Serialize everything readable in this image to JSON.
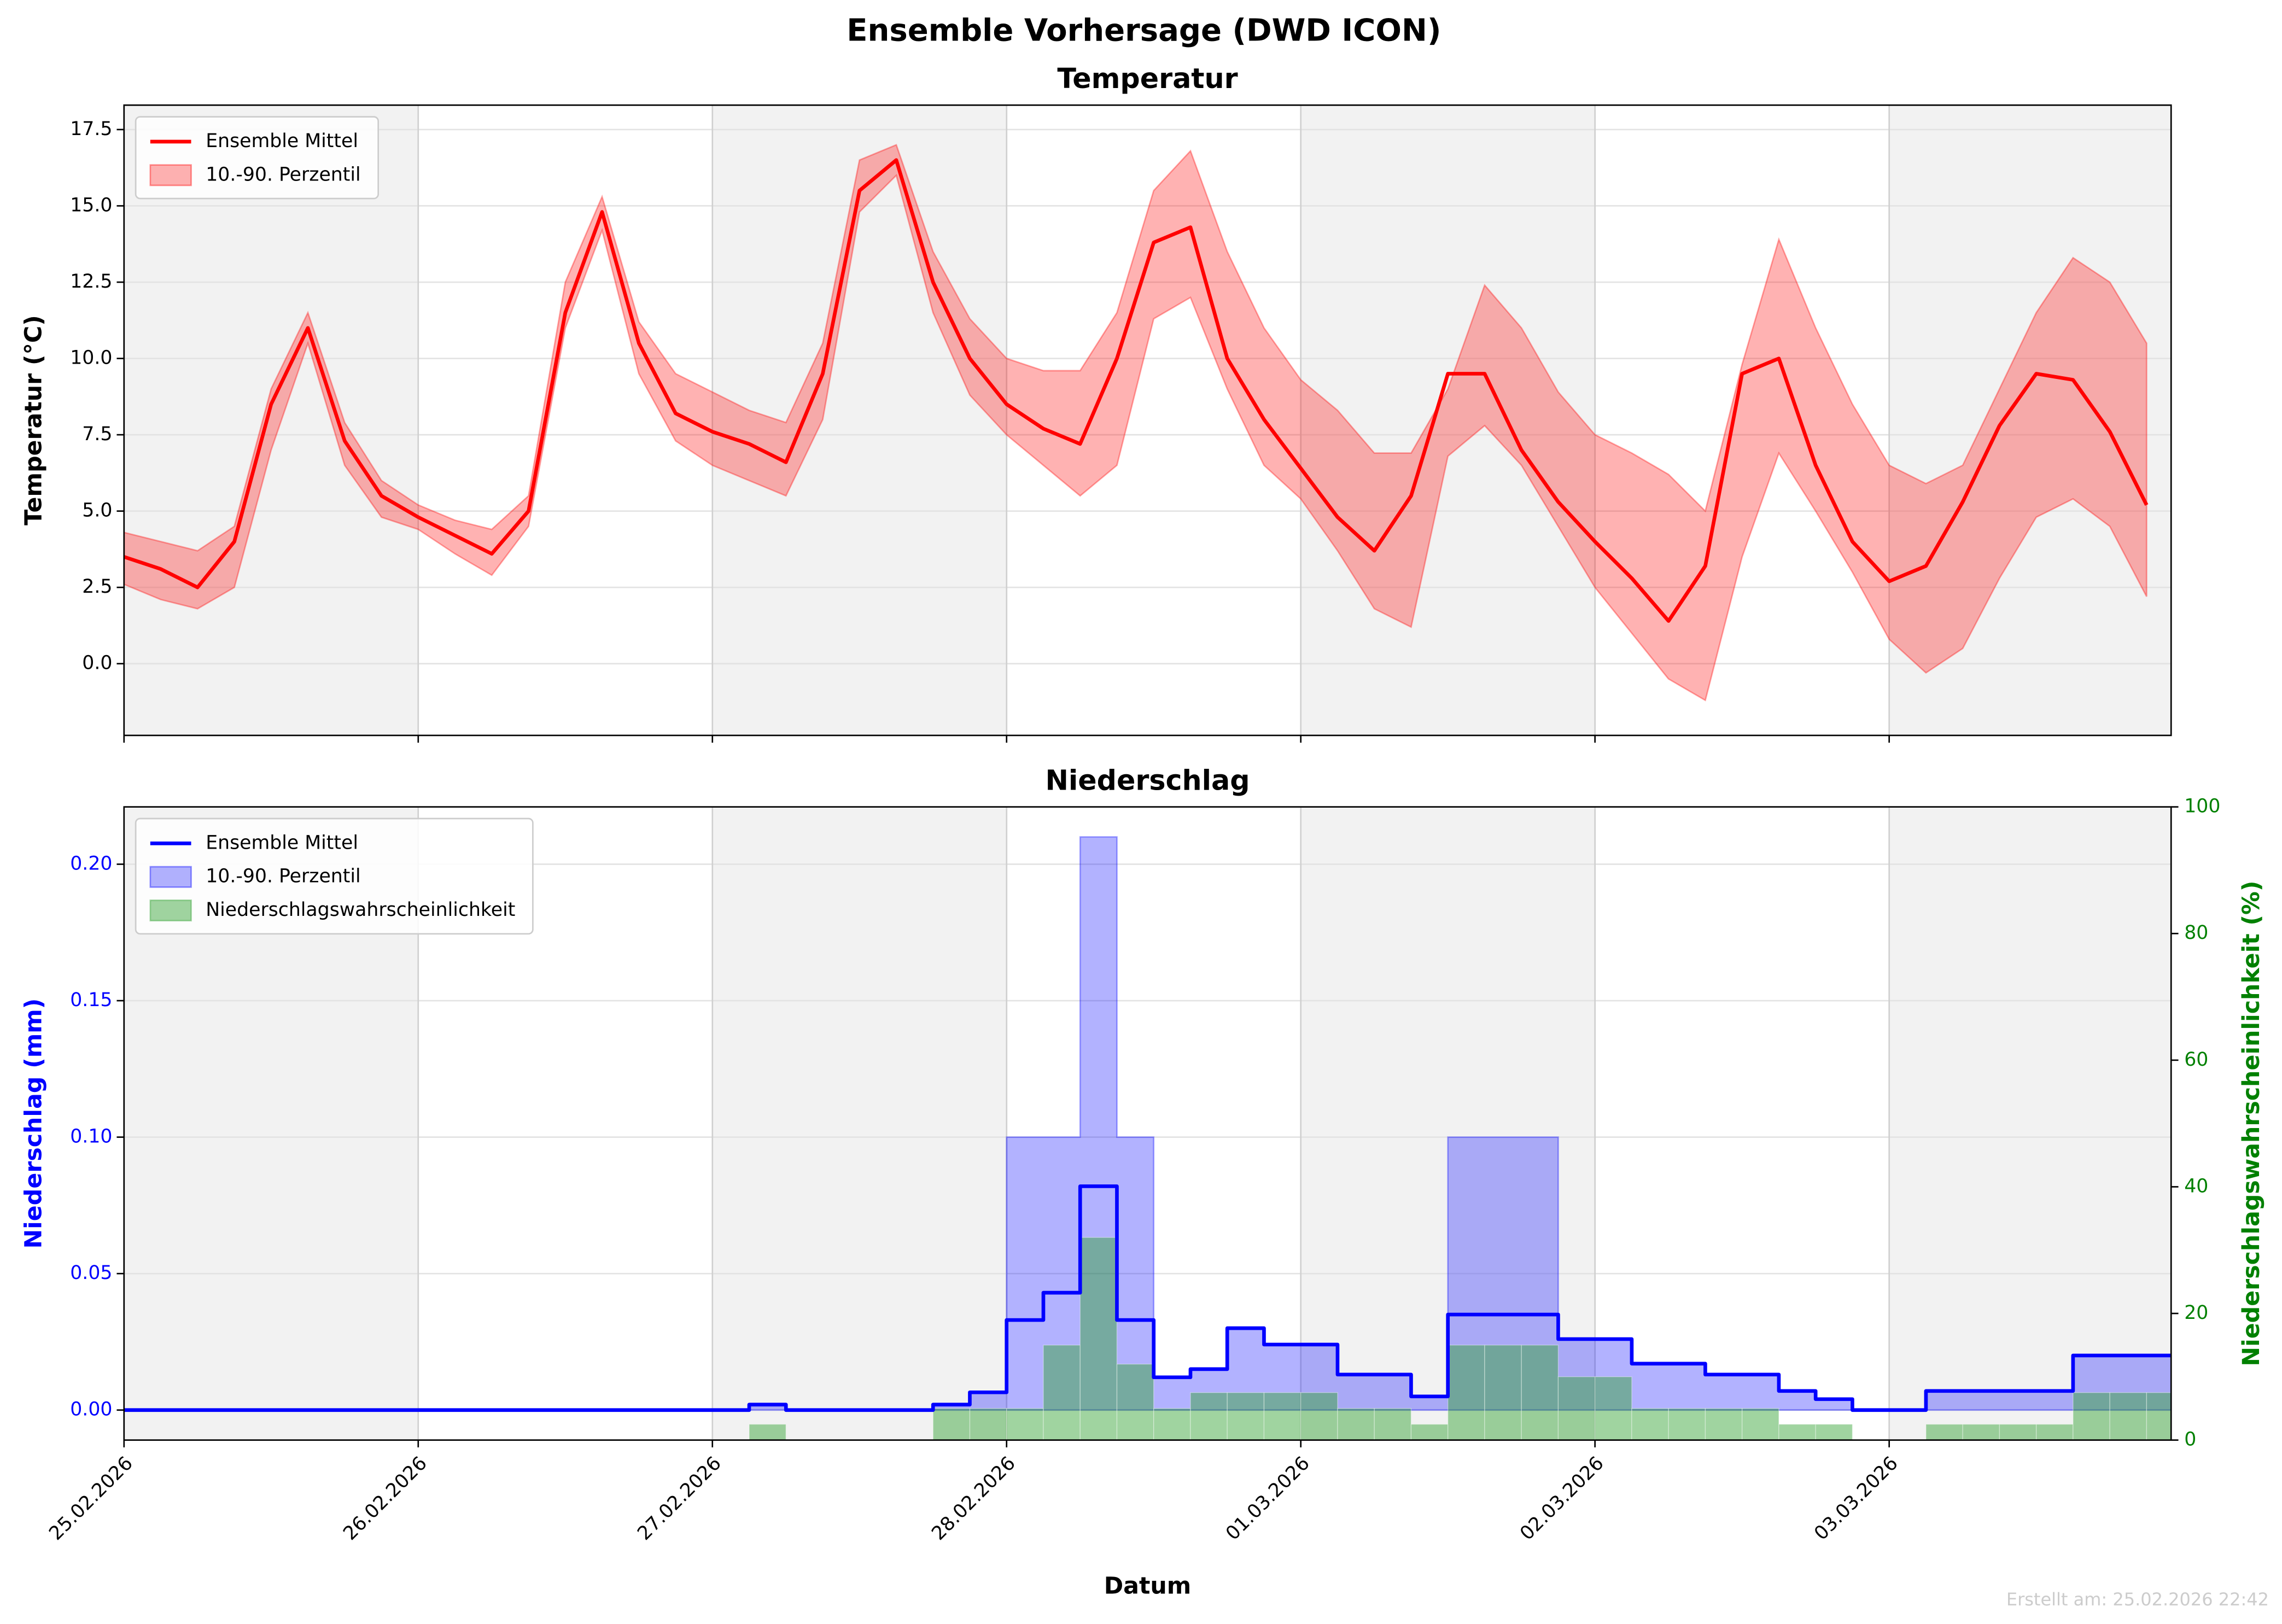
{
  "title": "Ensemble Vorhersage (DWD ICON)",
  "footer": "Erstellt am: 25.02.2026 22:42",
  "chart_data": [
    {
      "type": "line",
      "title": "Temperatur",
      "ylabel": "Temperatur (°C)",
      "x": [
        0,
        3,
        6,
        9,
        12,
        15,
        18,
        21,
        24,
        27,
        30,
        33,
        36,
        39,
        42,
        45,
        48,
        51,
        54,
        57,
        60,
        63,
        66,
        69,
        72,
        75,
        78,
        81,
        84,
        87,
        90,
        93,
        96,
        99,
        102,
        105,
        108,
        111,
        114,
        117,
        120,
        123,
        126,
        129,
        132,
        135,
        138,
        141,
        144,
        147,
        150,
        153,
        156,
        159,
        162,
        165
      ],
      "xlim": [
        0,
        167
      ],
      "xticks": [
        0,
        24,
        48,
        72,
        96,
        120,
        144
      ],
      "ylim": [
        -2.35,
        18.3
      ],
      "yticks": [
        {
          "value": 0,
          "label": "0.0"
        },
        {
          "value": 2.5,
          "label": "2.5"
        },
        {
          "value": 5,
          "label": "5.0"
        },
        {
          "value": 7.5,
          "label": "7.5"
        },
        {
          "value": 10,
          "label": "10.0"
        },
        {
          "value": 12.5,
          "label": "12.5"
        },
        {
          "value": 15,
          "label": "15.0"
        },
        {
          "value": 17.5,
          "label": "17.5"
        }
      ],
      "grid": true,
      "legend": "upper left",
      "series": [
        {
          "name": "Ensemble Mittel",
          "color": "#ff0000",
          "values": [
            3.5,
            3.1,
            2.5,
            4,
            8.5,
            11,
            7.3,
            5.5,
            4.8,
            4.2,
            3.6,
            5,
            11.5,
            14.8,
            10.5,
            8.2,
            7.6,
            7.2,
            6.6,
            9.5,
            15.5,
            16.5,
            12.5,
            10,
            8.5,
            7.7,
            7.2,
            10,
            13.8,
            14.3,
            10,
            8,
            6.4,
            4.8,
            3.7,
            5.5,
            9.5,
            9.5,
            7,
            5.3,
            4,
            2.8,
            1.4,
            3.2,
            9.5,
            10,
            6.5,
            4,
            2.7,
            3.2,
            5.3,
            7.8,
            9.5,
            9.3,
            7.6,
            5.2
          ]
        }
      ],
      "band": {
        "name": "10.-90. Perzentil",
        "color": "#ff0000",
        "upper": [
          4.3,
          4,
          3.7,
          4.5,
          9,
          11.5,
          7.9,
          6,
          5.2,
          4.7,
          4.4,
          5.5,
          12.5,
          15.3,
          11.2,
          9.5,
          8.9,
          8.3,
          7.9,
          10.5,
          16.5,
          17,
          13.5,
          11.3,
          10,
          9.6,
          9.6,
          11.5,
          15.5,
          16.8,
          13.5,
          11,
          9.3,
          8.3,
          6.9,
          6.9,
          9,
          12.4,
          11,
          8.9,
          7.5,
          6.9,
          6.2,
          5,
          9.8,
          13.9,
          11,
          8.5,
          6.5,
          5.9,
          6.5,
          9,
          11.5,
          13.3,
          12.5,
          10.5
        ],
        "lower": [
          2.6,
          2.1,
          1.8,
          2.5,
          7,
          10.5,
          6.5,
          4.8,
          4.4,
          3.6,
          2.9,
          4.5,
          11,
          14.2,
          9.5,
          7.3,
          6.5,
          6,
          5.5,
          8,
          14.8,
          16,
          11.5,
          8.8,
          7.5,
          6.5,
          5.5,
          6.5,
          11.3,
          12,
          9,
          6.5,
          5.4,
          3.7,
          1.8,
          1.2,
          6.8,
          7.8,
          6.5,
          4.5,
          2.5,
          1,
          -0.5,
          -1.2,
          3.5,
          6.9,
          5,
          3,
          0.8,
          -0.3,
          0.5,
          2.8,
          4.8,
          5.4,
          4.5,
          2.2
        ]
      }
    },
    {
      "type": "step",
      "title": "Niederschlag",
      "xlabel": "Datum",
      "ylabel": "Niederschlag (mm)",
      "y2label": "Niederschlagswahrscheinlichkeit (%)",
      "x": [
        0,
        3,
        6,
        9,
        12,
        15,
        18,
        21,
        24,
        27,
        30,
        33,
        36,
        39,
        42,
        45,
        48,
        51,
        54,
        57,
        60,
        63,
        66,
        69,
        72,
        75,
        78,
        81,
        84,
        87,
        90,
        93,
        96,
        99,
        102,
        105,
        108,
        111,
        114,
        117,
        120,
        123,
        126,
        129,
        132,
        135,
        138,
        141,
        144,
        147,
        150,
        153,
        156,
        159,
        162,
        165
      ],
      "xlim": [
        0,
        167
      ],
      "xticks": [
        {
          "value": 0,
          "label": "25.02.2026"
        },
        {
          "value": 24,
          "label": "26.02.2026"
        },
        {
          "value": 48,
          "label": "27.02.2026"
        },
        {
          "value": 72,
          "label": "28.02.2026"
        },
        {
          "value": 96,
          "label": "01.03.2026"
        },
        {
          "value": 120,
          "label": "02.03.2026"
        },
        {
          "value": 144,
          "label": "03.03.2026"
        }
      ],
      "ylim": [
        -0.011,
        0.221
      ],
      "yticks": [
        {
          "value": 0,
          "label": "0.00"
        },
        {
          "value": 0.05,
          "label": "0.05"
        },
        {
          "value": 0.1,
          "label": "0.10"
        },
        {
          "value": 0.15,
          "label": "0.15"
        },
        {
          "value": 0.2,
          "label": "0.20"
        }
      ],
      "y2lim": [
        0,
        100
      ],
      "y2ticks": [
        0,
        20,
        40,
        60,
        80,
        100
      ],
      "grid": true,
      "legend": "upper left",
      "series": [
        {
          "name": "Ensemble Mittel",
          "color": "#0000ff",
          "values": [
            0,
            0,
            0,
            0,
            0,
            0,
            0,
            0,
            0,
            0,
            0,
            0,
            0,
            0,
            0,
            0,
            0,
            0.002,
            0,
            0,
            0,
            0,
            0.002,
            0.0065,
            0.033,
            0.043,
            0.082,
            0.033,
            0.012,
            0.015,
            0.03,
            0.024,
            0.024,
            0.013,
            0.013,
            0.005,
            0.035,
            0.035,
            0.035,
            0.026,
            0.026,
            0.017,
            0.017,
            0.013,
            0.013,
            0.007,
            0.004,
            0,
            0,
            0.007,
            0.007,
            0.007,
            0.007,
            0.02,
            0.02,
            0.02
          ]
        },
        {
          "name": "Niederschlagswahrscheinlichkeit",
          "color": "#2ca02c",
          "axis": "y2",
          "values": [
            0,
            0,
            0,
            0,
            0,
            0,
            0,
            0,
            0,
            0,
            0,
            0,
            0,
            0,
            0,
            0,
            0,
            2.5,
            0,
            0,
            0,
            0,
            5,
            5,
            5,
            15,
            32,
            12,
            5,
            7.5,
            7.5,
            7.5,
            7.5,
            5,
            5,
            2.5,
            15,
            15,
            15,
            10,
            10,
            5,
            5,
            5,
            5,
            2.5,
            2.5,
            0,
            0,
            2.5,
            2.5,
            2.5,
            2.5,
            7.5,
            7.5,
            7.5
          ]
        }
      ],
      "band": {
        "name": "10.-90. Perzentil",
        "color": "#0000ff",
        "upper": [
          0,
          0,
          0,
          0,
          0,
          0,
          0,
          0,
          0,
          0,
          0,
          0,
          0,
          0,
          0,
          0,
          0,
          0.002,
          0,
          0,
          0,
          0,
          0.002,
          0.0065,
          0.1,
          0.1,
          0.21,
          0.1,
          0.012,
          0.015,
          0.03,
          0.024,
          0.024,
          0.013,
          0.013,
          0.005,
          0.1,
          0.1,
          0.1,
          0.026,
          0.026,
          0.017,
          0.017,
          0.013,
          0.013,
          0.007,
          0.004,
          0,
          0,
          0.007,
          0.007,
          0.007,
          0.007,
          0.02,
          0.02,
          0.02
        ],
        "lower": [
          0,
          0,
          0,
          0,
          0,
          0,
          0,
          0,
          0,
          0,
          0,
          0,
          0,
          0,
          0,
          0,
          0,
          0,
          0,
          0,
          0,
          0,
          0,
          0,
          0,
          0,
          0,
          0,
          0,
          0,
          0,
          0,
          0,
          0,
          0,
          0,
          0,
          0,
          0,
          0,
          0,
          0,
          0,
          0,
          0,
          0,
          0,
          0,
          0,
          0,
          0,
          0,
          0,
          0,
          0,
          0
        ]
      }
    }
  ]
}
